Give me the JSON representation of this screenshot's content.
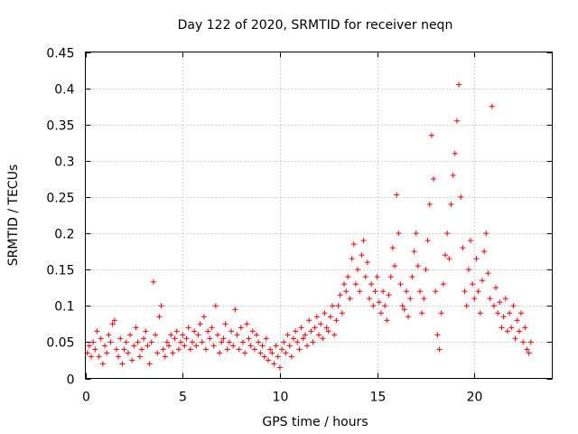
{
  "chart_data": {
    "type": "scatter",
    "title": "Day 122 of 2020, SRMTID for receiver neqn",
    "xlabel": "GPS time / hours",
    "ylabel": "SRMTID / TECUs",
    "xlim": [
      0,
      24
    ],
    "ylim": [
      0,
      0.45
    ],
    "x_ticks": [
      0,
      5,
      10,
      15,
      20
    ],
    "y_ticks": [
      0,
      0.05,
      0.1,
      0.15,
      0.2,
      0.25,
      0.3,
      0.35,
      0.4,
      0.45
    ],
    "x_tick_labels": [
      "0",
      "5",
      "10",
      "15",
      "20"
    ],
    "y_tick_labels": [
      "0",
      "0.05",
      "0.1",
      "0.15",
      "0.2",
      "0.25",
      "0.3",
      "0.35",
      "0.4",
      "0.45"
    ],
    "grid": true,
    "marker": "+",
    "color": "#e8141b",
    "series": [
      {
        "name": "SRMTID",
        "points": [
          [
            0.1,
            0.035
          ],
          [
            0.2,
            0.045
          ],
          [
            0.3,
            0.03
          ],
          [
            0.4,
            0.05
          ],
          [
            0.5,
            0.04
          ],
          [
            0.6,
            0.065
          ],
          [
            0.7,
            0.03
          ],
          [
            0.8,
            0.055
          ],
          [
            0.9,
            0.02
          ],
          [
            1.0,
            0.045
          ],
          [
            1.1,
            0.035
          ],
          [
            1.2,
            0.06
          ],
          [
            1.3,
            0.05
          ],
          [
            1.4,
            0.075
          ],
          [
            1.5,
            0.08
          ],
          [
            1.6,
            0.04
          ],
          [
            1.7,
            0.03
          ],
          [
            1.8,
            0.055
          ],
          [
            1.9,
            0.02
          ],
          [
            2.0,
            0.04
          ],
          [
            2.1,
            0.05
          ],
          [
            2.2,
            0.035
          ],
          [
            2.3,
            0.06
          ],
          [
            2.4,
            0.025
          ],
          [
            2.5,
            0.045
          ],
          [
            2.6,
            0.07
          ],
          [
            2.7,
            0.05
          ],
          [
            2.8,
            0.03
          ],
          [
            2.9,
            0.04
          ],
          [
            3.0,
            0.055
          ],
          [
            3.1,
            0.065
          ],
          [
            3.2,
            0.045
          ],
          [
            3.3,
            0.02
          ],
          [
            3.4,
            0.05
          ],
          [
            3.5,
            0.133
          ],
          [
            3.6,
            0.06
          ],
          [
            3.7,
            0.035
          ],
          [
            3.8,
            0.085
          ],
          [
            3.9,
            0.1
          ],
          [
            4.0,
            0.04
          ],
          [
            4.1,
            0.03
          ],
          [
            4.2,
            0.05
          ],
          [
            4.3,
            0.045
          ],
          [
            4.4,
            0.06
          ],
          [
            4.5,
            0.035
          ],
          [
            4.6,
            0.055
          ],
          [
            4.7,
            0.065
          ],
          [
            4.8,
            0.04
          ],
          [
            4.9,
            0.05
          ],
          [
            5.0,
            0.06
          ],
          [
            5.1,
            0.045
          ],
          [
            5.2,
            0.055
          ],
          [
            5.3,
            0.07
          ],
          [
            5.4,
            0.04
          ],
          [
            5.5,
            0.05
          ],
          [
            5.6,
            0.065
          ],
          [
            5.7,
            0.045
          ],
          [
            5.8,
            0.06
          ],
          [
            5.9,
            0.075
          ],
          [
            6.0,
            0.05
          ],
          [
            6.1,
            0.085
          ],
          [
            6.2,
            0.04
          ],
          [
            6.3,
            0.065
          ],
          [
            6.4,
            0.055
          ],
          [
            6.5,
            0.07
          ],
          [
            6.6,
            0.045
          ],
          [
            6.7,
            0.1
          ],
          [
            6.8,
            0.06
          ],
          [
            6.9,
            0.035
          ],
          [
            7.0,
            0.05
          ],
          [
            7.1,
            0.055
          ],
          [
            7.2,
            0.075
          ],
          [
            7.3,
            0.04
          ],
          [
            7.4,
            0.05
          ],
          [
            7.5,
            0.065
          ],
          [
            7.6,
            0.045
          ],
          [
            7.7,
            0.095
          ],
          [
            7.8,
            0.06
          ],
          [
            7.9,
            0.04
          ],
          [
            8.0,
            0.07
          ],
          [
            8.1,
            0.05
          ],
          [
            8.2,
            0.035
          ],
          [
            8.3,
            0.075
          ],
          [
            8.4,
            0.055
          ],
          [
            8.5,
            0.045
          ],
          [
            8.6,
            0.065
          ],
          [
            8.7,
            0.04
          ],
          [
            8.8,
            0.06
          ],
          [
            8.9,
            0.05
          ],
          [
            9.0,
            0.035
          ],
          [
            9.1,
            0.045
          ],
          [
            9.2,
            0.03
          ],
          [
            9.3,
            0.055
          ],
          [
            9.4,
            0.025
          ],
          [
            9.5,
            0.04
          ],
          [
            9.6,
            0.035
          ],
          [
            9.7,
            0.02
          ],
          [
            9.8,
            0.045
          ],
          [
            9.9,
            0.03
          ],
          [
            10.0,
            0.015
          ],
          [
            10.1,
            0.04
          ],
          [
            10.2,
            0.05
          ],
          [
            10.3,
            0.035
          ],
          [
            10.4,
            0.06
          ],
          [
            10.5,
            0.045
          ],
          [
            10.6,
            0.03
          ],
          [
            10.7,
            0.055
          ],
          [
            10.8,
            0.065
          ],
          [
            10.9,
            0.05
          ],
          [
            11.0,
            0.04
          ],
          [
            11.1,
            0.07
          ],
          [
            11.2,
            0.055
          ],
          [
            11.3,
            0.06
          ],
          [
            11.4,
            0.045
          ],
          [
            11.5,
            0.08
          ],
          [
            11.6,
            0.065
          ],
          [
            11.7,
            0.05
          ],
          [
            11.8,
            0.07
          ],
          [
            11.9,
            0.085
          ],
          [
            12.0,
            0.06
          ],
          [
            12.1,
            0.075
          ],
          [
            12.2,
            0.055
          ],
          [
            12.3,
            0.09
          ],
          [
            12.4,
            0.07
          ],
          [
            12.5,
            0.065
          ],
          [
            12.6,
            0.085
          ],
          [
            12.7,
            0.1
          ],
          [
            12.8,
            0.06
          ],
          [
            12.9,
            0.08
          ],
          [
            13.0,
            0.1
          ],
          [
            13.1,
            0.115
          ],
          [
            13.2,
            0.09
          ],
          [
            13.3,
            0.13
          ],
          [
            13.4,
            0.12
          ],
          [
            13.5,
            0.14
          ],
          [
            13.6,
            0.11
          ],
          [
            13.7,
            0.165
          ],
          [
            13.8,
            0.185
          ],
          [
            13.9,
            0.13
          ],
          [
            14.0,
            0.15
          ],
          [
            14.1,
            0.12
          ],
          [
            14.2,
            0.17
          ],
          [
            14.3,
            0.19
          ],
          [
            14.4,
            0.14
          ],
          [
            14.5,
            0.16
          ],
          [
            14.6,
            0.11
          ],
          [
            14.7,
            0.13
          ],
          [
            14.8,
            0.1
          ],
          [
            14.9,
            0.12
          ],
          [
            15.0,
            0.14
          ],
          [
            15.1,
            0.105
          ],
          [
            15.2,
            0.09
          ],
          [
            15.3,
            0.12
          ],
          [
            15.4,
            0.1
          ],
          [
            15.5,
            0.08
          ],
          [
            15.6,
            0.115
          ],
          [
            15.7,
            0.14
          ],
          [
            15.8,
            0.18
          ],
          [
            15.9,
            0.155
          ],
          [
            16.0,
            0.253
          ],
          [
            16.1,
            0.2
          ],
          [
            16.2,
            0.13
          ],
          [
            16.3,
            0.1
          ],
          [
            16.4,
            0.095
          ],
          [
            16.5,
            0.12
          ],
          [
            16.6,
            0.085
          ],
          [
            16.7,
            0.11
          ],
          [
            16.8,
            0.14
          ],
          [
            16.9,
            0.175
          ],
          [
            17.0,
            0.2
          ],
          [
            17.1,
            0.155
          ],
          [
            17.2,
            0.12
          ],
          [
            17.3,
            0.09
          ],
          [
            17.4,
            0.11
          ],
          [
            17.5,
            0.15
          ],
          [
            17.6,
            0.19
          ],
          [
            17.7,
            0.24
          ],
          [
            17.8,
            0.335
          ],
          [
            17.9,
            0.275
          ],
          [
            18.0,
            0.12
          ],
          [
            18.1,
            0.06
          ],
          [
            18.2,
            0.04
          ],
          [
            18.3,
            0.09
          ],
          [
            18.4,
            0.13
          ],
          [
            18.5,
            0.17
          ],
          [
            18.6,
            0.2
          ],
          [
            18.7,
            0.165
          ],
          [
            18.8,
            0.24
          ],
          [
            18.9,
            0.28
          ],
          [
            19.0,
            0.31
          ],
          [
            19.1,
            0.355
          ],
          [
            19.2,
            0.405
          ],
          [
            19.3,
            0.25
          ],
          [
            19.4,
            0.18
          ],
          [
            19.5,
            0.12
          ],
          [
            19.6,
            0.1
          ],
          [
            19.7,
            0.15
          ],
          [
            19.8,
            0.19
          ],
          [
            19.9,
            0.13
          ],
          [
            20.0,
            0.11
          ],
          [
            20.1,
            0.165
          ],
          [
            20.2,
            0.12
          ],
          [
            20.3,
            0.09
          ],
          [
            20.4,
            0.135
          ],
          [
            20.5,
            0.175
          ],
          [
            20.6,
            0.2
          ],
          [
            20.7,
            0.145
          ],
          [
            20.8,
            0.11
          ],
          [
            20.9,
            0.375
          ],
          [
            21.0,
            0.1
          ],
          [
            21.1,
            0.125
          ],
          [
            21.2,
            0.09
          ],
          [
            21.3,
            0.105
          ],
          [
            21.4,
            0.07
          ],
          [
            21.5,
            0.085
          ],
          [
            21.6,
            0.11
          ],
          [
            21.7,
            0.065
          ],
          [
            21.8,
            0.09
          ],
          [
            21.9,
            0.07
          ],
          [
            22.0,
            0.1
          ],
          [
            22.1,
            0.055
          ],
          [
            22.2,
            0.08
          ],
          [
            22.3,
            0.065
          ],
          [
            22.4,
            0.09
          ],
          [
            22.5,
            0.05
          ],
          [
            22.6,
            0.07
          ],
          [
            22.7,
            0.04
          ],
          [
            22.8,
            0.035
          ],
          [
            22.9,
            0.05
          ]
        ]
      }
    ]
  }
}
